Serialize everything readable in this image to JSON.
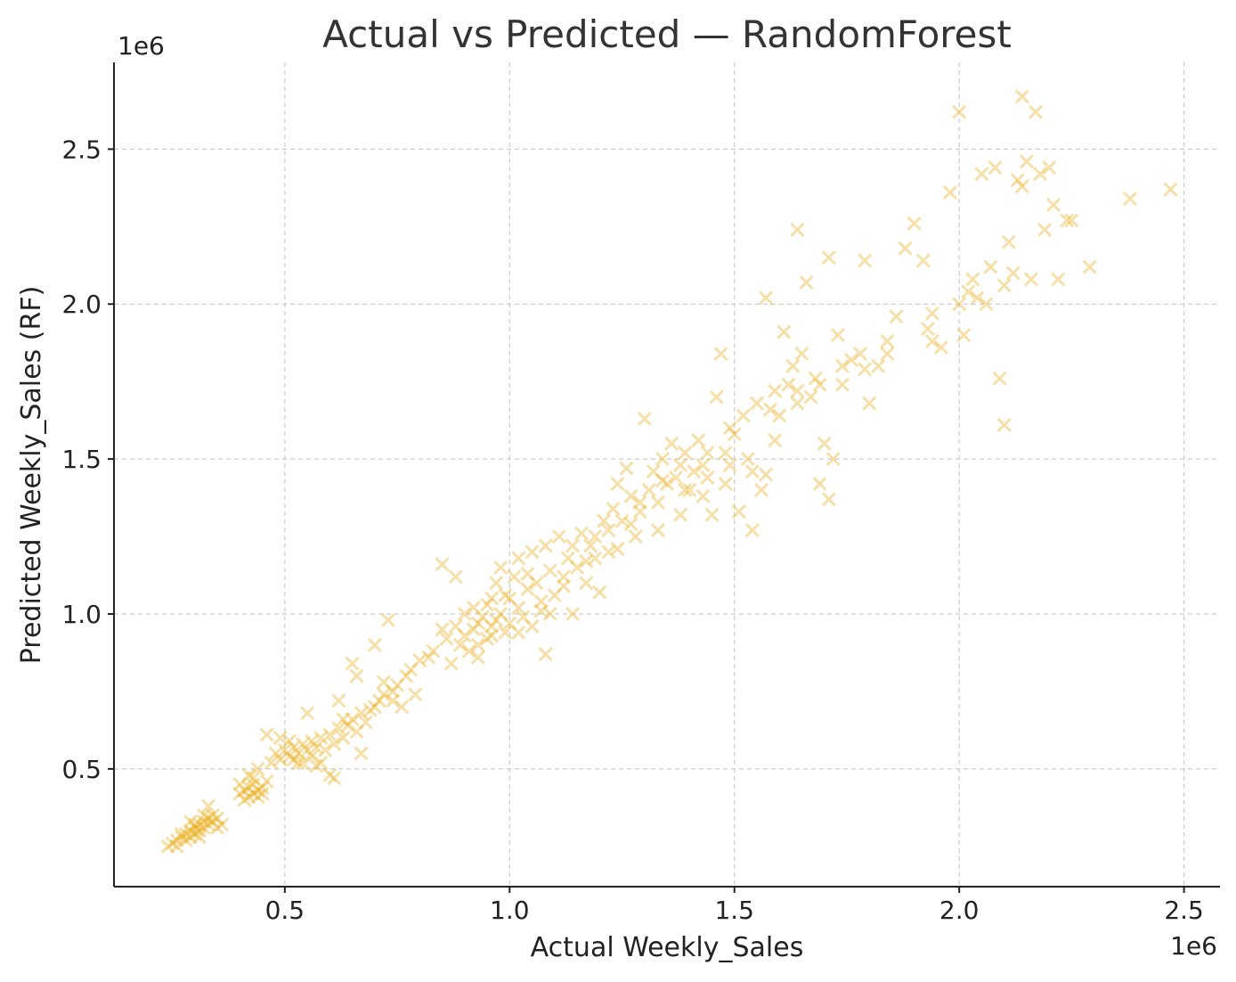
{
  "chart_data": {
    "type": "scatter",
    "title": "Actual vs Predicted — RandomForest",
    "xlabel": "Actual Weekly_Sales",
    "ylabel": "Predicted Weekly_Sales (RF)",
    "x_offset_label": "1e6",
    "y_offset_label": "1e6",
    "xlim": [
      0.12,
      2.58
    ],
    "ylim": [
      0.12,
      2.78
    ],
    "x_ticks": [
      0.5,
      1.0,
      1.5,
      2.0,
      2.5
    ],
    "x_tick_labels": [
      "0.5",
      "1.0",
      "1.5",
      "2.0",
      "2.5"
    ],
    "y_ticks": [
      0.5,
      1.0,
      1.5,
      2.0,
      2.5
    ],
    "y_tick_labels": [
      "0.5",
      "1.0",
      "1.5",
      "2.0",
      "2.5"
    ],
    "grid": true,
    "marker": "x",
    "marker_color": "#E8A90C",
    "marker_alpha": 0.35,
    "points": [
      [
        0.24,
        0.25
      ],
      [
        0.25,
        0.26
      ],
      [
        0.26,
        0.27
      ],
      [
        0.27,
        0.28
      ],
      [
        0.28,
        0.29
      ],
      [
        0.28,
        0.27
      ],
      [
        0.29,
        0.3
      ],
      [
        0.29,
        0.28
      ],
      [
        0.3,
        0.31
      ],
      [
        0.3,
        0.29
      ],
      [
        0.31,
        0.32
      ],
      [
        0.31,
        0.3
      ],
      [
        0.32,
        0.33
      ],
      [
        0.32,
        0.31
      ],
      [
        0.33,
        0.34
      ],
      [
        0.33,
        0.32
      ],
      [
        0.34,
        0.35
      ],
      [
        0.34,
        0.33
      ],
      [
        0.35,
        0.34
      ],
      [
        0.3,
        0.32
      ],
      [
        0.27,
        0.29
      ],
      [
        0.32,
        0.35
      ],
      [
        0.33,
        0.38
      ],
      [
        0.26,
        0.25
      ],
      [
        0.29,
        0.33
      ],
      [
        0.36,
        0.32
      ],
      [
        0.31,
        0.28
      ],
      [
        0.35,
        0.31
      ],
      [
        0.4,
        0.42
      ],
      [
        0.41,
        0.43
      ],
      [
        0.42,
        0.44
      ],
      [
        0.42,
        0.41
      ],
      [
        0.43,
        0.42
      ],
      [
        0.43,
        0.45
      ],
      [
        0.44,
        0.43
      ],
      [
        0.44,
        0.41
      ],
      [
        0.45,
        0.44
      ],
      [
        0.41,
        0.4
      ],
      [
        0.46,
        0.46
      ],
      [
        0.4,
        0.45
      ],
      [
        0.42,
        0.48
      ],
      [
        0.45,
        0.42
      ],
      [
        0.43,
        0.47
      ],
      [
        0.44,
        0.5
      ],
      [
        0.47,
        0.52
      ],
      [
        0.48,
        0.55
      ],
      [
        0.49,
        0.53
      ],
      [
        0.5,
        0.56
      ],
      [
        0.51,
        0.54
      ],
      [
        0.52,
        0.57
      ],
      [
        0.52,
        0.53
      ],
      [
        0.53,
        0.55
      ],
      [
        0.54,
        0.58
      ],
      [
        0.54,
        0.52
      ],
      [
        0.55,
        0.56
      ],
      [
        0.56,
        0.59
      ],
      [
        0.56,
        0.54
      ],
      [
        0.57,
        0.57
      ],
      [
        0.58,
        0.6
      ],
      [
        0.59,
        0.56
      ],
      [
        0.6,
        0.61
      ],
      [
        0.61,
        0.58
      ],
      [
        0.62,
        0.63
      ],
      [
        0.63,
        0.6
      ],
      [
        0.64,
        0.64
      ],
      [
        0.65,
        0.66
      ],
      [
        0.66,
        0.62
      ],
      [
        0.67,
        0.68
      ],
      [
        0.68,
        0.65
      ],
      [
        0.7,
        0.7
      ],
      [
        0.71,
        0.72
      ],
      [
        0.72,
        0.74
      ],
      [
        0.74,
        0.75
      ],
      [
        0.75,
        0.77
      ],
      [
        0.46,
        0.61
      ],
      [
        0.49,
        0.6
      ],
      [
        0.51,
        0.59
      ],
      [
        0.53,
        0.52
      ],
      [
        0.55,
        0.68
      ],
      [
        0.57,
        0.51
      ],
      [
        0.58,
        0.52
      ],
      [
        0.6,
        0.48
      ],
      [
        0.61,
        0.47
      ],
      [
        0.62,
        0.72
      ],
      [
        0.63,
        0.66
      ],
      [
        0.65,
        0.84
      ],
      [
        0.66,
        0.8
      ],
      [
        0.67,
        0.55
      ],
      [
        0.69,
        0.69
      ],
      [
        0.7,
        0.9
      ],
      [
        0.72,
        0.78
      ],
      [
        0.73,
        0.98
      ],
      [
        0.74,
        0.72
      ],
      [
        0.76,
        0.7
      ],
      [
        0.77,
        0.8
      ],
      [
        0.78,
        0.82
      ],
      [
        0.79,
        0.74
      ],
      [
        0.8,
        0.85
      ],
      [
        0.82,
        0.86
      ],
      [
        0.83,
        0.88
      ],
      [
        0.85,
        0.95
      ],
      [
        0.85,
        1.16
      ],
      [
        0.86,
        0.92
      ],
      [
        0.87,
        0.84
      ],
      [
        0.88,
        0.96
      ],
      [
        0.88,
        1.12
      ],
      [
        0.89,
        0.9
      ],
      [
        0.9,
        0.93
      ],
      [
        0.9,
        1.0
      ],
      [
        0.91,
        0.88
      ],
      [
        0.92,
        0.95
      ],
      [
        0.92,
        1.02
      ],
      [
        0.93,
        0.97
      ],
      [
        0.93,
        0.86
      ],
      [
        0.94,
        0.99
      ],
      [
        0.95,
        1.03
      ],
      [
        0.95,
        0.92
      ],
      [
        0.96,
        1.05
      ],
      [
        0.96,
        0.96
      ],
      [
        0.97,
        1.1
      ],
      [
        0.97,
        0.98
      ],
      [
        0.98,
        1.0
      ],
      [
        0.98,
        1.15
      ],
      [
        0.99,
        0.94
      ],
      [
        1.0,
        1.05
      ],
      [
        1.0,
        0.97
      ],
      [
        1.01,
        1.12
      ],
      [
        1.02,
        1.02
      ],
      [
        1.02,
        1.18
      ],
      [
        1.03,
        0.99
      ],
      [
        1.04,
        1.08
      ],
      [
        1.05,
        1.2
      ],
      [
        1.05,
        0.96
      ],
      [
        1.06,
        1.1
      ],
      [
        1.07,
        1.04
      ],
      [
        1.08,
        1.22
      ],
      [
        1.08,
        0.87
      ],
      [
        1.09,
        1.14
      ],
      [
        1.1,
        1.06
      ],
      [
        1.11,
        1.25
      ],
      [
        1.12,
        1.09
      ],
      [
        1.13,
        1.18
      ],
      [
        1.14,
        1.0
      ],
      [
        1.15,
        1.15
      ],
      [
        1.16,
        1.26
      ],
      [
        1.17,
        1.1
      ],
      [
        1.18,
        1.22
      ],
      [
        1.19,
        1.18
      ],
      [
        1.2,
        1.07
      ],
      [
        1.21,
        1.3
      ],
      [
        1.22,
        1.2
      ],
      [
        1.23,
        1.34
      ],
      [
        1.24,
        1.42
      ],
      [
        1.25,
        1.3
      ],
      [
        1.26,
        1.47
      ],
      [
        1.27,
        1.38
      ],
      [
        1.28,
        1.25
      ],
      [
        1.29,
        1.33
      ],
      [
        1.3,
        1.63
      ],
      [
        1.31,
        1.4
      ],
      [
        1.32,
        1.46
      ],
      [
        1.33,
        1.36
      ],
      [
        1.34,
        1.5
      ],
      [
        1.35,
        1.42
      ],
      [
        1.36,
        1.55
      ],
      [
        1.37,
        1.44
      ],
      [
        1.38,
        1.48
      ],
      [
        1.39,
        1.52
      ],
      [
        1.4,
        1.4
      ],
      [
        1.41,
        1.46
      ],
      [
        1.42,
        1.56
      ],
      [
        1.43,
        1.38
      ],
      [
        1.44,
        1.44
      ],
      [
        1.45,
        1.32
      ],
      [
        1.46,
        1.7
      ],
      [
        1.47,
        1.84
      ],
      [
        1.48,
        1.52
      ],
      [
        1.49,
        1.48
      ],
      [
        1.5,
        1.58
      ],
      [
        1.51,
        1.33
      ],
      [
        1.52,
        1.64
      ],
      [
        1.53,
        1.5
      ],
      [
        1.54,
        1.27
      ],
      [
        1.55,
        1.68
      ],
      [
        1.56,
        1.4
      ],
      [
        1.57,
        1.45
      ],
      [
        1.58,
        1.66
      ],
      [
        1.59,
        1.72
      ],
      [
        1.6,
        1.64
      ],
      [
        1.61,
        1.91
      ],
      [
        1.62,
        1.74
      ],
      [
        1.63,
        1.8
      ],
      [
        1.64,
        1.68
      ],
      [
        1.65,
        1.84
      ],
      [
        1.66,
        2.07
      ],
      [
        1.67,
        1.7
      ],
      [
        1.68,
        1.76
      ],
      [
        1.69,
        1.42
      ],
      [
        1.7,
        1.55
      ],
      [
        1.71,
        2.15
      ],
      [
        1.72,
        1.5
      ],
      [
        1.73,
        1.9
      ],
      [
        1.74,
        1.8
      ],
      [
        1.76,
        1.82
      ],
      [
        1.78,
        1.84
      ],
      [
        1.8,
        1.68
      ],
      [
        1.82,
        1.8
      ],
      [
        1.84,
        1.88
      ],
      [
        1.86,
        1.96
      ],
      [
        1.88,
        2.18
      ],
      [
        1.9,
        2.26
      ],
      [
        1.92,
        2.14
      ],
      [
        1.93,
        1.92
      ],
      [
        1.94,
        1.88
      ],
      [
        1.96,
        1.86
      ],
      [
        1.98,
        2.36
      ],
      [
        2.0,
        2.0
      ],
      [
        2.01,
        1.9
      ],
      [
        2.02,
        2.04
      ],
      [
        2.03,
        2.08
      ],
      [
        2.04,
        2.02
      ],
      [
        2.05,
        2.42
      ],
      [
        2.06,
        2.0
      ],
      [
        2.07,
        2.12
      ],
      [
        2.08,
        2.44
      ],
      [
        2.09,
        1.76
      ],
      [
        2.1,
        2.06
      ],
      [
        2.1,
        1.61
      ],
      [
        2.11,
        2.2
      ],
      [
        2.12,
        2.1
      ],
      [
        2.13,
        2.4
      ],
      [
        2.14,
        2.67
      ],
      [
        2.15,
        2.46
      ],
      [
        2.16,
        2.08
      ],
      [
        2.17,
        2.62
      ],
      [
        2.18,
        2.42
      ],
      [
        2.19,
        2.24
      ],
      [
        2.2,
        2.44
      ],
      [
        2.21,
        2.32
      ],
      [
        2.22,
        2.08
      ],
      [
        2.24,
        2.27
      ],
      [
        2.25,
        2.27
      ],
      [
        2.29,
        2.12
      ],
      [
        2.38,
        2.34
      ],
      [
        2.47,
        2.37
      ],
      [
        2.0,
        2.62
      ],
      [
        1.64,
        2.24
      ],
      [
        1.57,
        2.02
      ],
      [
        1.79,
        2.14
      ],
      [
        1.71,
        1.37
      ],
      [
        1.94,
        1.97
      ],
      [
        2.14,
        2.38
      ],
      [
        1.02,
        0.94
      ],
      [
        1.07,
        1.01
      ],
      [
        1.12,
        1.12
      ],
      [
        1.17,
        1.17
      ],
      [
        1.22,
        1.27
      ],
      [
        1.27,
        1.29
      ],
      [
        1.33,
        1.27
      ],
      [
        1.38,
        1.32
      ],
      [
        1.43,
        1.48
      ],
      [
        1.48,
        1.42
      ],
      [
        0.93,
        0.9
      ],
      [
        0.96,
        0.93
      ],
      [
        0.99,
        1.06
      ],
      [
        1.04,
        1.13
      ],
      [
        1.09,
        1.0
      ],
      [
        1.14,
        1.22
      ],
      [
        1.19,
        1.25
      ],
      [
        1.24,
        1.21
      ],
      [
        1.29,
        1.36
      ],
      [
        1.34,
        1.43
      ],
      [
        1.39,
        1.4
      ],
      [
        1.44,
        1.52
      ],
      [
        1.49,
        1.6
      ],
      [
        1.54,
        1.46
      ],
      [
        1.59,
        1.56
      ],
      [
        1.64,
        1.72
      ],
      [
        1.69,
        1.74
      ],
      [
        1.74,
        1.74
      ],
      [
        1.79,
        1.79
      ],
      [
        1.84,
        1.84
      ]
    ]
  }
}
